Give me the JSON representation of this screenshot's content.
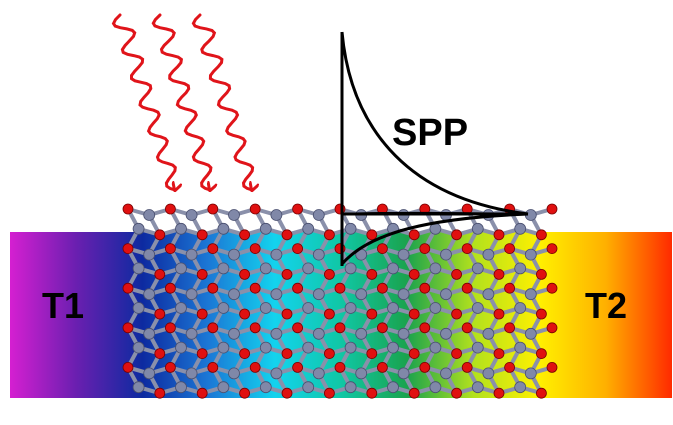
{
  "labels": {
    "left_reservoir": "T1",
    "right_reservoir": "T2",
    "plasmon": "SPP"
  },
  "colors": {
    "gradient": [
      "#d51fd1",
      "#6a1fb0",
      "#0d2aa0",
      "#1b78d6",
      "#13d3ee",
      "#10c7a5",
      "#1aa34d",
      "#b2e11d",
      "#fff000",
      "#ffb000",
      "#ff2a00"
    ],
    "photon_wave": "#e0141a",
    "atom_red": "#e01010",
    "atom_gray": "#8088a8",
    "curve": "#000000"
  },
  "icons": {
    "incident_light": "wavy-arrow-icon",
    "lattice": "hexagonal-lattice",
    "field_profile": "exponential-decay-curve"
  }
}
